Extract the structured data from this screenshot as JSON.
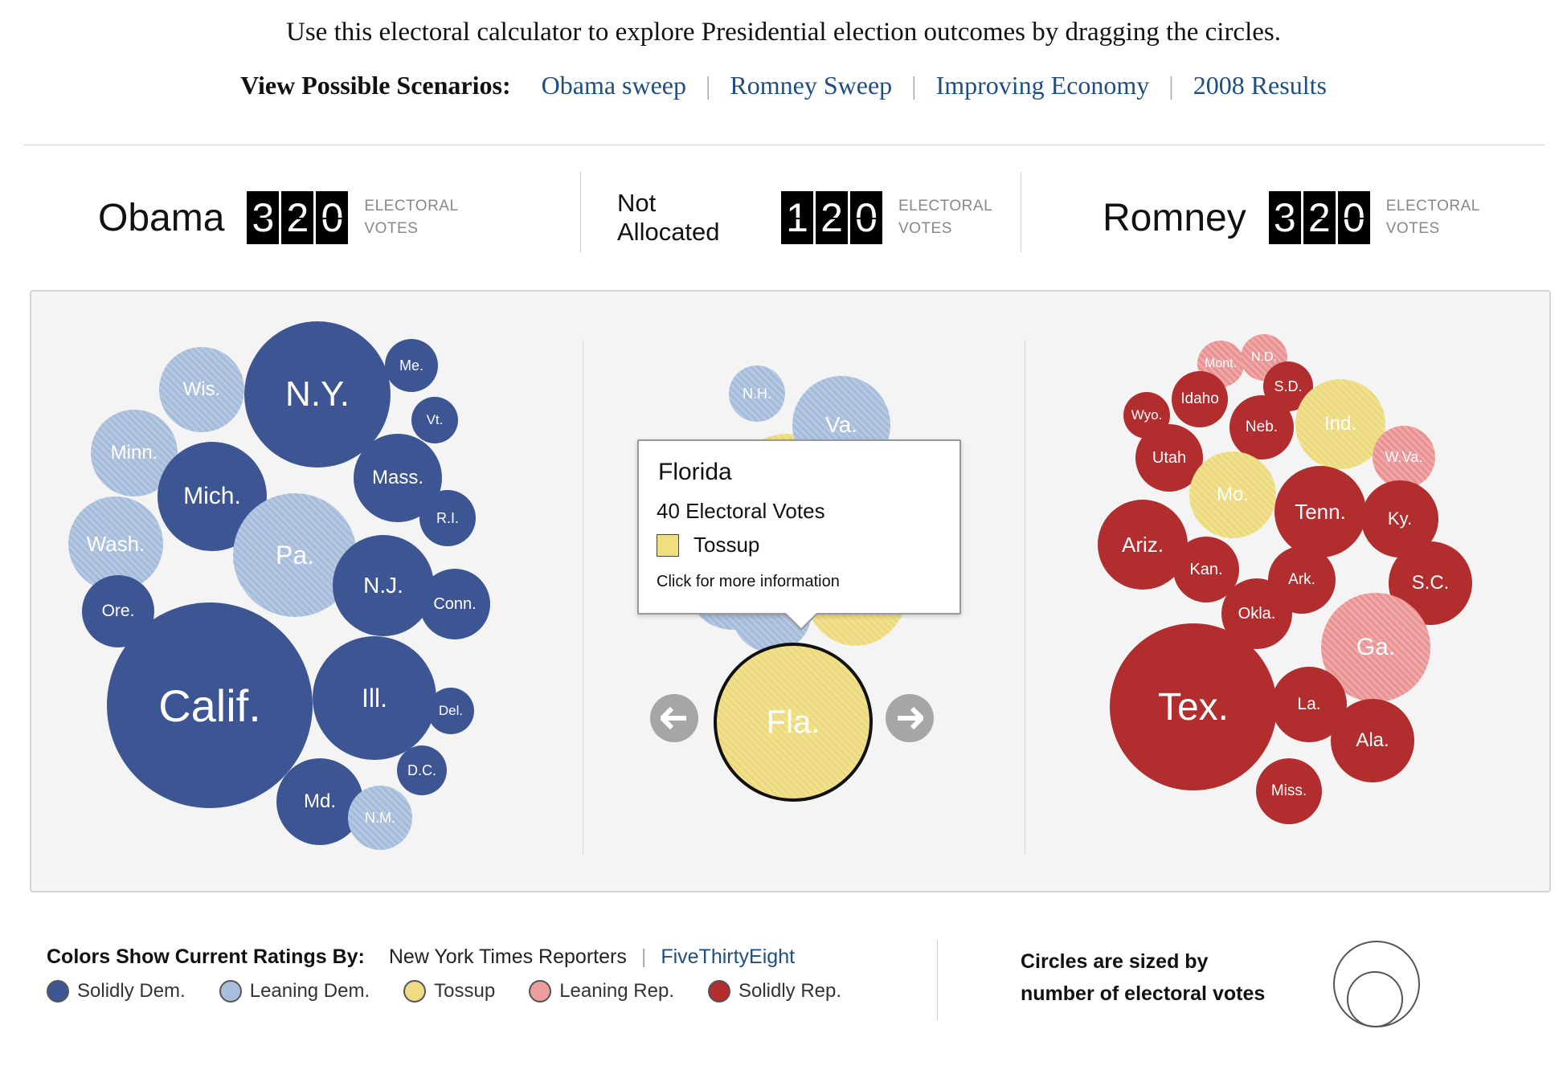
{
  "intro": "Use this electoral calculator to explore Presidential election outcomes by dragging the circles.",
  "scenarios": {
    "label": "View Possible Scenarios:",
    "links": [
      "Obama sweep",
      "Romney Sweep",
      "Improving Economy",
      "2008 Results"
    ],
    "separator": "|"
  },
  "tallies": {
    "obama": {
      "name": "Obama",
      "digits": [
        "3",
        "2",
        "0"
      ],
      "label_line1": "ELECTORAL",
      "label_line2": "VOTES"
    },
    "unallocated": {
      "name_line1": "Not",
      "name_line2": "Allocated",
      "digits": [
        "1",
        "2",
        "0"
      ],
      "label_line1": "ELECTORAL",
      "label_line2": "VOTES"
    },
    "romney": {
      "name": "Romney",
      "digits": [
        "3",
        "2",
        "0"
      ],
      "label_line1": "ELECTORAL",
      "label_line2": "VOTES"
    }
  },
  "colors": {
    "solidly_dem": "#3d5693",
    "leaning_dem": "#a9bedb",
    "tossup": "#eedb82",
    "leaning_rep": "#ec9d9d",
    "solidly_rep": "#b12d2e"
  },
  "states": {
    "wis": "Wis.",
    "ny": "N.Y.",
    "me": "Me.",
    "vt": "Vt.",
    "minn": "Minn.",
    "mich": "Mich.",
    "mass": "Mass.",
    "ri": "R.I.",
    "wash": "Wash.",
    "pa": "Pa.",
    "nj": "N.J.",
    "conn": "Conn.",
    "ore": "Ore.",
    "calif": "Calif.",
    "ill": "Ill.",
    "del": "Del.",
    "dc": "D.C.",
    "md": "Md.",
    "nm": "N.M.",
    "nh": "N.H.",
    "va": "Va.",
    "fla": "Fla.",
    "mont": "Mont.",
    "nd": "N.D.",
    "sd": "S.D.",
    "idaho": "Idaho",
    "wyo": "Wyo.",
    "ind": "Ind.",
    "neb": "Neb.",
    "utah": "Utah",
    "wva": "W.Va.",
    "mo": "Mo.",
    "tenn": "Tenn.",
    "ky": "Ky.",
    "ariz": "Ariz.",
    "kan": "Kan.",
    "ark": "Ark.",
    "sc": "S.C.",
    "okla": "Okla.",
    "ga": "Ga.",
    "tex": "Tex.",
    "la": "La.",
    "ala": "Ala.",
    "miss": "Miss."
  },
  "tooltip": {
    "state": "Florida",
    "votes": "40 Electoral Votes",
    "rating": "Tossup",
    "more": "Click for more information"
  },
  "footer": {
    "ratings_label": "Colors Show Current Ratings By:",
    "source": "New York Times Reporters",
    "separator": "|",
    "alt_source": "FiveThirtyEight",
    "legend": [
      "Solidly Dem.",
      "Leaning Dem.",
      "Tossup",
      "Leaning Rep.",
      "Solidly Rep."
    ],
    "size_note_line1": "Circles are sized by",
    "size_note_line2": "number of electoral votes"
  }
}
